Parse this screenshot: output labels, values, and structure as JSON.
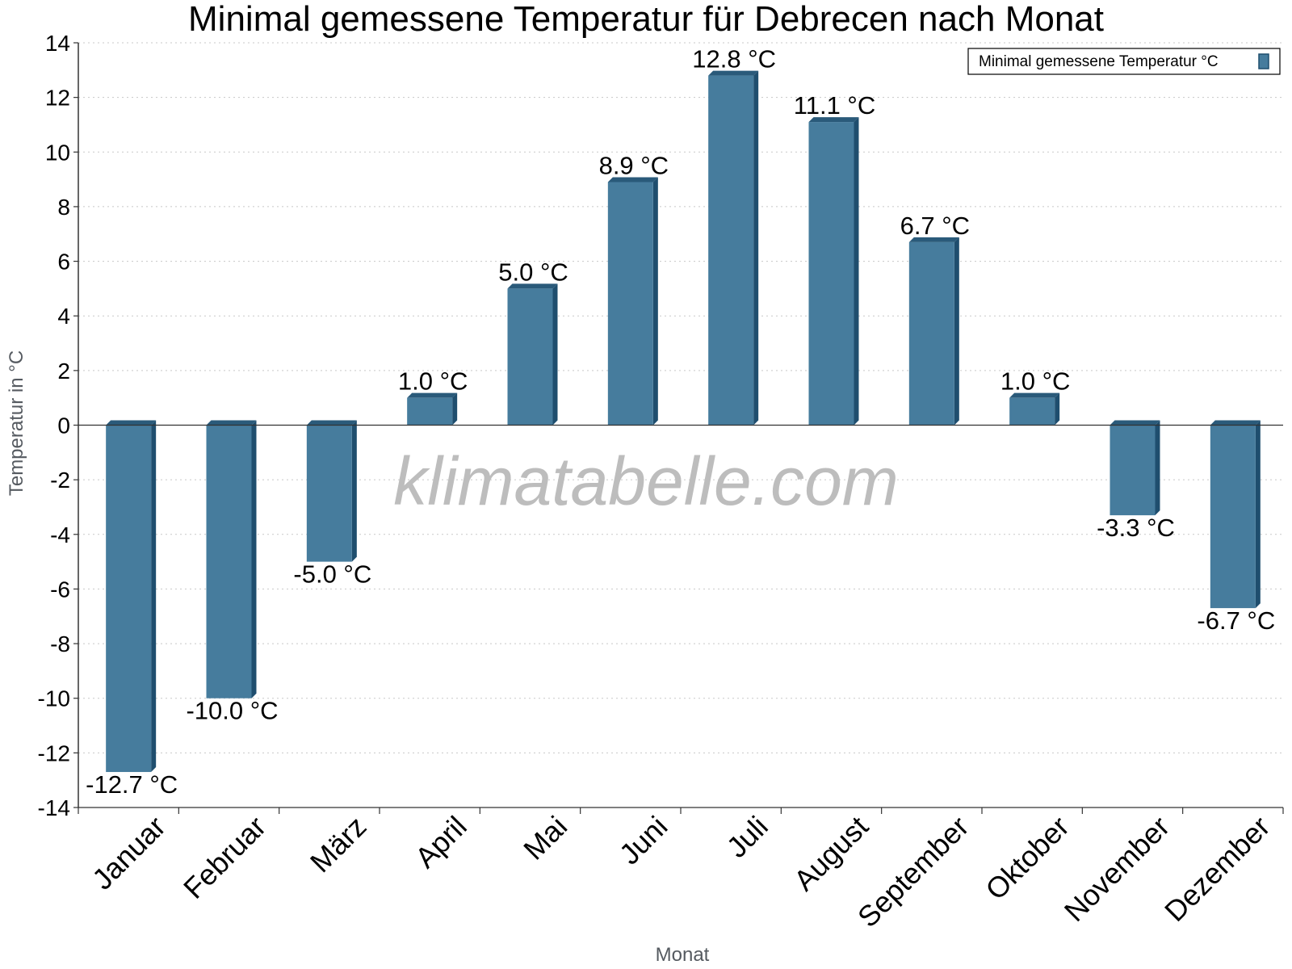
{
  "watermark": "klimatabelle.com",
  "colors": {
    "bar_front": "#467c9d",
    "bar_side": "#1f4e6e",
    "bar_top": "#2a5a7a",
    "grid": "#c8c8c8",
    "axis": "#333333"
  },
  "chart_data": {
    "type": "bar",
    "title": "Minimal gemessene Temperatur für Debrecen nach Monat",
    "xlabel": "Monat",
    "ylabel": "Temperatur in °C",
    "ylim": [
      -14,
      14
    ],
    "yticks": [
      14,
      12,
      10,
      8,
      6,
      4,
      2,
      0,
      -2,
      -4,
      -6,
      -8,
      -10,
      -12,
      -14
    ],
    "grid": true,
    "legend_position": "top-right",
    "categories": [
      "Januar",
      "Februar",
      "März",
      "April",
      "Mai",
      "Juni",
      "Juli",
      "August",
      "September",
      "Oktober",
      "November",
      "Dezember"
    ],
    "series": [
      {
        "name": "Minimal gemessene Temperatur °C",
        "values": [
          -12.7,
          -10.0,
          -5.0,
          1.0,
          5.0,
          8.9,
          12.8,
          11.1,
          6.7,
          1.0,
          -3.3,
          -6.7
        ],
        "labels": [
          "-12.7 °C",
          "-10.0 °C",
          "-5.0 °C",
          "1.0 °C",
          "5.0 °C",
          "8.9 °C",
          "12.8 °C",
          "11.1 °C",
          "6.7 °C",
          "1.0 °C",
          "-3.3 °C",
          "-6.7 °C"
        ]
      }
    ]
  }
}
